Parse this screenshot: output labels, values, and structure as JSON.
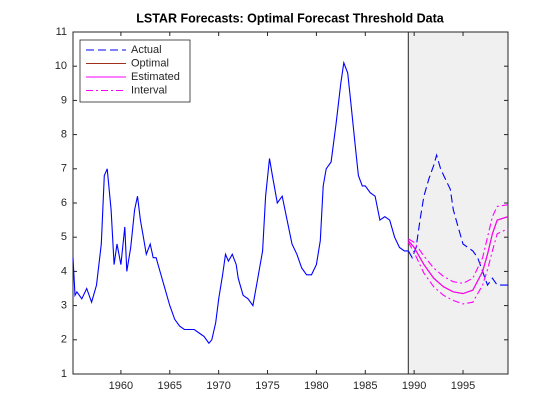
{
  "chart_data": {
    "type": "line",
    "title": "LSTAR Forecasts: Optimal Forecast Threshold Data",
    "xlim": [
      1955.1,
      1999.6
    ],
    "ylim": [
      1,
      11
    ],
    "xticks": [
      1960,
      1965,
      1970,
      1975,
      1980,
      1985,
      1990,
      1995
    ],
    "yticks": [
      1,
      2,
      3,
      4,
      5,
      6,
      7,
      8,
      9,
      10,
      11
    ],
    "legend": "upper-left",
    "shade_forecast": true,
    "series": [
      {
        "color": "#0000ff",
        "style": "solid",
        "x": [
          1955.1,
          1955.3,
          1955.5,
          1956,
          1956.5,
          1957,
          1957.5,
          1958,
          1958.3,
          1958.6,
          1959,
          1959.3,
          1959.6,
          1960,
          1960.4,
          1960.6,
          1961,
          1961.4,
          1961.7,
          1962,
          1962.3,
          1962.6,
          1963,
          1963.3,
          1963.6,
          1964,
          1964.5,
          1965,
          1965.5,
          1966,
          1966.5,
          1967,
          1967.5,
          1968,
          1968.5,
          1969,
          1969.3,
          1969.7,
          1970,
          1970.4,
          1970.7,
          1971,
          1971.4,
          1971.8,
          1972,
          1972.5,
          1973,
          1973.5,
          1974,
          1974.5,
          1974.8,
          1975.2,
          1975.5,
          1976,
          1976.5,
          1977,
          1977.5,
          1978,
          1978.5,
          1979,
          1979.5,
          1980,
          1980.4,
          1980.7,
          1981,
          1981.5,
          1982,
          1982.5,
          1982.8,
          1983.2,
          1983.5,
          1984,
          1984.3,
          1984.7,
          1985,
          1985.5,
          1986,
          1986.5,
          1987,
          1987.5,
          1988,
          1988.5,
          1989,
          1989.4
        ],
        "values": [
          4.4,
          3.3,
          3.4,
          3.2,
          3.5,
          3.1,
          3.6,
          4.8,
          6.8,
          7.0,
          5.8,
          4.2,
          4.8,
          4.2,
          5.3,
          4.0,
          4.7,
          5.8,
          6.2,
          5.5,
          5.0,
          4.5,
          4.8,
          4.4,
          4.4,
          4.0,
          3.5,
          3.0,
          2.6,
          2.4,
          2.3,
          2.3,
          2.3,
          2.2,
          2.1,
          1.9,
          2.0,
          2.5,
          3.2,
          3.9,
          4.5,
          4.3,
          4.5,
          4.2,
          3.8,
          3.3,
          3.2,
          3.0,
          3.8,
          4.6,
          6.2,
          7.3,
          6.8,
          6.0,
          6.2,
          5.5,
          4.8,
          4.5,
          4.1,
          3.9,
          3.9,
          4.2,
          4.9,
          6.5,
          7.0,
          7.2,
          8.3,
          9.5,
          10.1,
          9.8,
          9.0,
          7.6,
          6.8,
          6.5,
          6.5,
          6.3,
          6.2,
          5.5,
          5.6,
          5.5,
          5.0,
          4.7,
          4.6,
          4.6
        ]
      },
      {
        "name": "Actual",
        "color": "#0000ff",
        "style": "dashed",
        "forecast": true,
        "x": [
          1989.4,
          1989.8,
          1990.2,
          1990.6,
          1991,
          1991.5,
          1992,
          1992.3,
          1992.7,
          1993.2,
          1993.7,
          1994,
          1994.5,
          1995,
          1995.5,
          1996,
          1996.5,
          1997,
          1997.5,
          1998,
          1998.5,
          1999.6
        ],
        "values": [
          4.6,
          4.4,
          4.7,
          5.5,
          6.2,
          6.7,
          7.1,
          7.4,
          7.0,
          6.7,
          6.4,
          5.8,
          5.3,
          4.8,
          4.7,
          4.6,
          4.4,
          4.0,
          3.6,
          3.8,
          3.6,
          3.6
        ]
      },
      {
        "name": "Optimal",
        "color": "#a0301a",
        "style": "solid",
        "x": [
          1989.4,
          1990,
          1991,
          1992,
          1993,
          1994,
          1995,
          1996,
          1997,
          1997.5,
          1998,
          1998.5,
          1999.6
        ],
        "values": [
          4.9,
          4.7,
          4.2,
          3.8,
          3.55,
          3.4,
          3.35,
          3.45,
          4.0,
          4.5,
          5.1,
          5.5,
          5.6
        ]
      },
      {
        "name": "Estimated",
        "color": "#ff00ff",
        "style": "solid",
        "x": [
          1989.4,
          1990,
          1991,
          1992,
          1993,
          1994,
          1995,
          1996,
          1997,
          1997.5,
          1998,
          1998.5,
          1999.6
        ],
        "values": [
          4.9,
          4.7,
          4.2,
          3.8,
          3.55,
          3.4,
          3.35,
          3.45,
          4.0,
          4.5,
          5.1,
          5.5,
          5.6
        ]
      },
      {
        "name": "Interval",
        "color": "#ff00ff",
        "style": "dashdot",
        "x": [
          1989.4,
          1990,
          1991,
          1992,
          1993,
          1994,
          1995,
          1996,
          1997,
          1997.5,
          1998,
          1998.5,
          1999.6
        ],
        "values": [
          4.95,
          4.85,
          4.45,
          4.1,
          3.85,
          3.7,
          3.65,
          3.8,
          4.4,
          5.0,
          5.6,
          5.9,
          5.95
        ]
      },
      {
        "color": "#ff00ff",
        "style": "dashdot",
        "x": [
          1989.4,
          1990,
          1991,
          1992,
          1993,
          1994,
          1995,
          1996,
          1997,
          1997.5,
          1998,
          1998.5,
          1999.6
        ],
        "values": [
          4.85,
          4.55,
          3.95,
          3.55,
          3.3,
          3.15,
          3.05,
          3.1,
          3.6,
          4.05,
          4.6,
          5.1,
          5.25
        ]
      }
    ]
  }
}
